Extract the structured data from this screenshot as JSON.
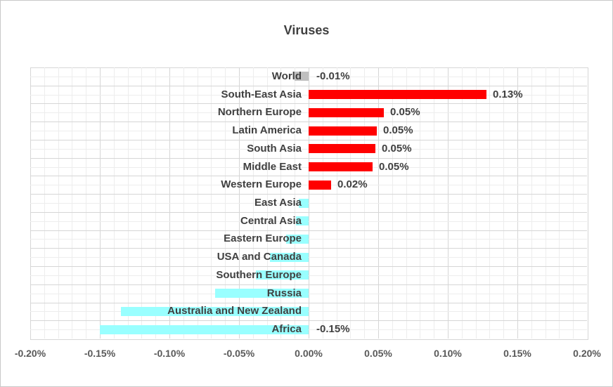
{
  "chart_data": {
    "type": "bar",
    "orientation": "horizontal",
    "title": "Viruses",
    "units": "percent",
    "legend": "none",
    "grid": "major-and-minor",
    "categories": [
      "World",
      "South-East Asia",
      "Northern Europe",
      "Latin America",
      "South Asia",
      "Middle East",
      "Western Europe",
      "East Asia",
      "Central Asia",
      "Eastern Europe",
      "USA and Canada",
      "Southern Europe",
      "Russia",
      "Australia and New Zealand",
      "Africa"
    ],
    "values": [
      -0.01,
      0.128,
      0.054,
      0.049,
      0.048,
      0.046,
      0.016,
      -0.007,
      -0.009,
      -0.016,
      -0.028,
      -0.038,
      -0.067,
      -0.135,
      -0.15
    ],
    "data_labels": [
      "-0.01%",
      "0.13%",
      "0.05%",
      "0.05%",
      "0.05%",
      "0.05%",
      "0.02%",
      "",
      "",
      "",
      "",
      "",
      "",
      "",
      "-0.15%"
    ],
    "bar_colors": [
      "#bfbfbf",
      "#ff0000",
      "#ff0000",
      "#ff0000",
      "#ff0000",
      "#ff0000",
      "#ff0000",
      "#99ffff",
      "#99ffff",
      "#99ffff",
      "#99ffff",
      "#99ffff",
      "#99ffff",
      "#99ffff",
      "#99ffff"
    ],
    "xlim": [
      -0.2,
      0.2
    ],
    "x_major_unit": 0.05,
    "x_minor_unit": 0.01,
    "x_tick_labels": [
      "-0.20%",
      "-0.15%",
      "-0.10%",
      "-0.05%",
      "0.00%",
      "0.05%",
      "0.10%",
      "0.15%",
      "0.20%"
    ],
    "colors": {
      "positive_bar": "#ff0000",
      "negative_bar": "#99ffff",
      "world_bar": "#bfbfbf",
      "label_text": "#404040",
      "axis_text": "#595959",
      "grid_major": "#d6d6d6",
      "grid_minor": "#ededed"
    }
  }
}
